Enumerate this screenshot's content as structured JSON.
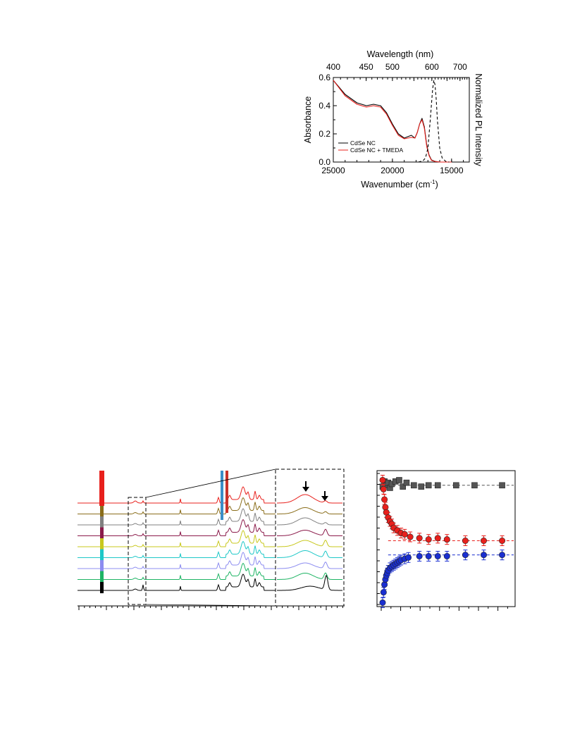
{
  "chart_data": [
    {
      "type": "line",
      "xlabel": "Wavenumber (cm-1)",
      "xlabel_main": "Wavenumber (cm",
      "xlabel_sup": "-1",
      "xlabel_close": ")",
      "top_xlabel": "Wavelength (nm)",
      "ylabel": "Absorbance",
      "ylabel_right": "Normalized PL Intensity",
      "xlim": [
        25000,
        13500
      ],
      "ylim": [
        0,
        0.6
      ],
      "x_ticks": [
        "25000",
        "20000",
        "15000"
      ],
      "y_ticks": [
        "0.0",
        "0.2",
        "0.4",
        "0.6"
      ],
      "top_ticks": [
        "400",
        "450",
        "500",
        "600",
        "700"
      ],
      "series": [
        {
          "name": "CdSe NC",
          "color": "#000000",
          "x": [
            25000,
            24000,
            23000,
            22200,
            21600,
            21000,
            20500,
            20000,
            19500,
            19000,
            18700,
            18400,
            18100,
            17900,
            17700,
            17500,
            17300,
            17100,
            16900,
            16700,
            16400,
            16000,
            15500,
            15000
          ],
          "y": [
            0.58,
            0.48,
            0.42,
            0.4,
            0.41,
            0.4,
            0.35,
            0.27,
            0.2,
            0.17,
            0.18,
            0.19,
            0.17,
            0.21,
            0.27,
            0.31,
            0.25,
            0.12,
            0.05,
            0.015,
            0.005,
            0.0,
            0.0,
            0.0
          ]
        },
        {
          "name": "CdSe NC + TMEDA",
          "color": "#e8201c",
          "x": [
            25000,
            24000,
            23000,
            22200,
            21600,
            21000,
            20500,
            20000,
            19500,
            19000,
            18700,
            18400,
            18100,
            17900,
            17700,
            17500,
            17300,
            17100,
            16900,
            16700,
            16400,
            16000,
            15500,
            15000
          ],
          "y": [
            0.58,
            0.47,
            0.41,
            0.39,
            0.4,
            0.39,
            0.34,
            0.26,
            0.19,
            0.165,
            0.17,
            0.175,
            0.17,
            0.21,
            0.27,
            0.3,
            0.24,
            0.11,
            0.045,
            0.012,
            0.004,
            0.0,
            0.0,
            0.0
          ]
        },
        {
          "name": "PL",
          "color": "#000000",
          "dashed": true,
          "x": [
            17800,
            17400,
            17200,
            17000,
            16800,
            16600,
            16500,
            16400,
            16300,
            16200,
            16000,
            15800,
            15500,
            15200
          ],
          "y": [
            0.0,
            0.01,
            0.03,
            0.1,
            0.3,
            0.52,
            0.58,
            0.55,
            0.45,
            0.3,
            0.1,
            0.03,
            0.005,
            0.0
          ]
        }
      ],
      "legend_position": "bottom-left"
    },
    {
      "type": "line",
      "description_free": true,
      "stack_colors": [
        "#e8201c",
        "#8a6d1a",
        "#808080",
        "#8b1a4a",
        "#c8c81e",
        "#1ec8c8",
        "#8c8cf0",
        "#1eb464",
        "#000000"
      ],
      "arrows": 2
    },
    {
      "type": "scatter",
      "series": [
        {
          "color": "#555555",
          "marker": "square",
          "x": [
            0.0,
            0.1,
            0.2,
            0.3,
            0.4,
            0.5,
            0.7,
            0.9,
            1.1,
            1.3,
            1.7,
            2.1,
            2.5,
            3.0,
            4.0,
            5.0,
            6.5
          ],
          "y": [
            0.92,
            0.96,
            0.93,
            0.95,
            0.91,
            0.94,
            0.96,
            0.97,
            0.92,
            0.95,
            0.93,
            0.92,
            0.93,
            0.93,
            0.93,
            0.93,
            0.93
          ]
        },
        {
          "color": "#e8201c",
          "marker": "circle",
          "x": [
            0.0,
            0.05,
            0.1,
            0.15,
            0.2,
            0.3,
            0.4,
            0.5,
            0.6,
            0.8,
            1.0,
            1.2,
            1.5,
            2.0,
            2.5,
            3.0,
            3.5,
            4.5,
            5.5,
            6.5
          ],
          "y": [
            0.97,
            0.9,
            0.82,
            0.76,
            0.72,
            0.68,
            0.65,
            0.63,
            0.6,
            0.58,
            0.56,
            0.55,
            0.53,
            0.52,
            0.51,
            0.52,
            0.51,
            0.5,
            0.5,
            0.5
          ]
        },
        {
          "color": "#1a2fd0",
          "marker": "circle",
          "x": [
            0.0,
            0.05,
            0.1,
            0.15,
            0.2,
            0.25,
            0.3,
            0.4,
            0.5,
            0.6,
            0.7,
            0.8,
            0.9,
            1.0,
            1.2,
            1.4,
            2.0,
            2.5,
            3.0,
            3.5,
            4.5,
            5.5,
            6.5
          ],
          "y": [
            0.02,
            0.1,
            0.16,
            0.2,
            0.23,
            0.25,
            0.27,
            0.29,
            0.3,
            0.31,
            0.32,
            0.33,
            0.34,
            0.35,
            0.36,
            0.37,
            0.38,
            0.38,
            0.38,
            0.38,
            0.39,
            0.39,
            0.39
          ]
        }
      ]
    }
  ]
}
